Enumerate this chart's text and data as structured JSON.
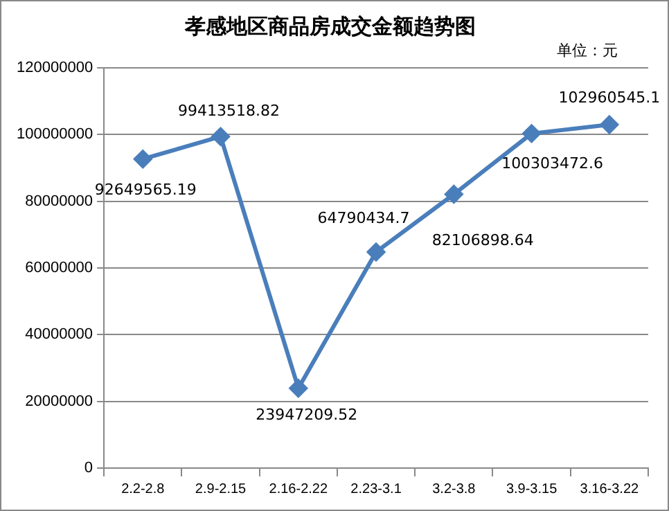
{
  "chart_data": {
    "type": "line",
    "title": "孝感地区商品房成交金额趋势图",
    "annotations": [
      "单位：元"
    ],
    "categories": [
      "2.2-2.8",
      "2.9-2.15",
      "2.16-2.22",
      "2.23-3.1",
      "3.2-3.8",
      "3.9-3.15",
      "3.16-3.22"
    ],
    "series": [
      {
        "color": "#4a7ebb",
        "values": [
          92649565.19,
          99413518.82,
          23947209.52,
          64790434.7,
          82106898.64,
          100303472.6,
          102960545.1
        ]
      }
    ],
    "ylim": [
      0,
      120000000
    ],
    "yticks": [
      0,
      20000000,
      40000000,
      60000000,
      80000000,
      100000000,
      120000000
    ],
    "grid": "y",
    "legend": false,
    "marker": "diamond",
    "line_style": "solid",
    "data_labels": true
  }
}
